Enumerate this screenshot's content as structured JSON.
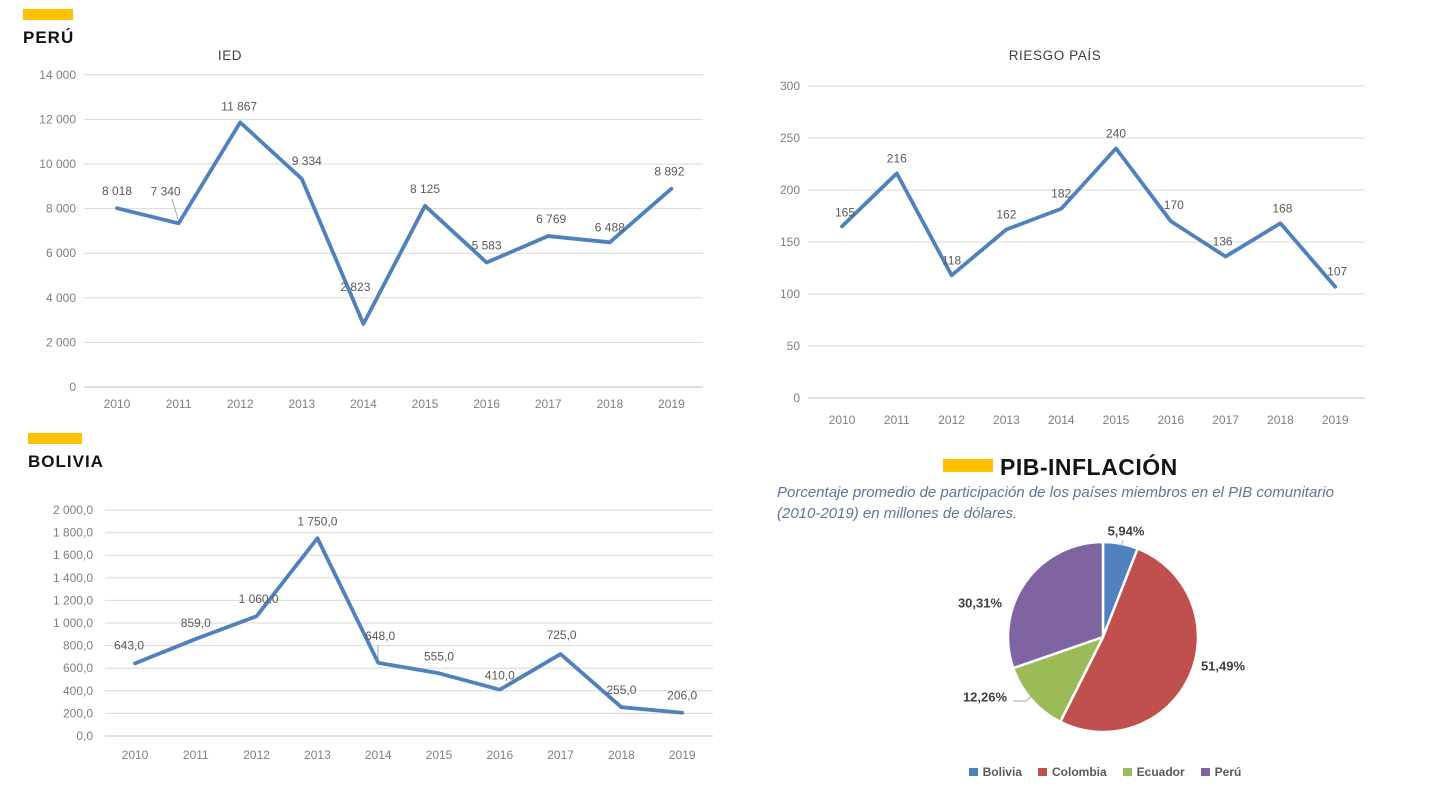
{
  "colors": {
    "accent_yellow": "#FFC000",
    "line_blue": "#4F81BD",
    "grid": "#D9D9D9",
    "axis_line": "#BFBFBF",
    "axis_text": "#7F7F7F",
    "data_label_text": "#595959",
    "subtitle_text": "#5D7599"
  },
  "sections": {
    "peru": {
      "heading": "PERÚ"
    },
    "bolivia": {
      "heading": "BOLIVIA"
    },
    "pib": {
      "heading": "PIB-INFLACIÓN",
      "subtitle": "Porcentaje promedio de participación de los países miembros en el PIB comunitario (2010-2019) en millones de dólares."
    }
  },
  "chart_data": [
    {
      "id": "ied",
      "type": "line",
      "title": "IED",
      "categories": [
        "2010",
        "2011",
        "2012",
        "2013",
        "2014",
        "2015",
        "2016",
        "2017",
        "2018",
        "2019"
      ],
      "values": [
        8018,
        7340,
        11867,
        9334,
        2823,
        8125,
        5583,
        6769,
        6488,
        8892
      ],
      "labels": [
        "8 018",
        "7 340",
        "11 867",
        "9 334",
        "2 823",
        "8 125",
        "5 583",
        "6 769",
        "6 488",
        "8 892"
      ],
      "ylim": [
        0,
        14000
      ],
      "ytick_labels": [
        "0",
        "2 000",
        "4 000",
        "6 000",
        "8 000",
        "10 000",
        "12 000",
        "14 000"
      ],
      "grid": true,
      "line_color": "#4F81BD"
    },
    {
      "id": "riesgo-pais",
      "type": "line",
      "title": "RIESGO PAÍS",
      "categories": [
        "2010",
        "2011",
        "2012",
        "2013",
        "2014",
        "2015",
        "2016",
        "2017",
        "2018",
        "2019"
      ],
      "values": [
        165,
        216,
        118,
        162,
        182,
        240,
        170,
        136,
        168,
        107
      ],
      "labels": [
        "165",
        "216",
        "118",
        "162",
        "182",
        "240",
        "170",
        "136",
        "168",
        "107"
      ],
      "ylim": [
        0,
        300
      ],
      "ytick_labels": [
        "0",
        "50",
        "100",
        "150",
        "200",
        "250",
        "300"
      ],
      "grid": true,
      "line_color": "#4F81BD"
    },
    {
      "id": "bolivia-ied",
      "type": "line",
      "title": "",
      "categories": [
        "2010",
        "2011",
        "2012",
        "2013",
        "2014",
        "2015",
        "2016",
        "2017",
        "2018",
        "2019"
      ],
      "values": [
        643,
        859,
        1060,
        1750,
        648,
        555,
        410,
        725,
        255,
        206
      ],
      "labels": [
        "643,0",
        "859,0",
        "1 060,0",
        "1 750,0",
        "648,0",
        "555,0",
        "410,0",
        "725,0",
        "255,0",
        "206,0"
      ],
      "ylim": [
        0,
        2000
      ],
      "ytick_labels": [
        "0,0",
        "200,0",
        "400,0",
        "600,0",
        "800,0",
        "1 000,0",
        "1 200,0",
        "1 400,0",
        "1 600,0",
        "1 800,0",
        "2 000,0"
      ],
      "grid": true,
      "line_color": "#4F81BD"
    },
    {
      "id": "pib-pie",
      "type": "pie",
      "title": "PIB-INFLACIÓN",
      "legend_position": "bottom",
      "slices": [
        {
          "name": "Bolivia",
          "value": 5.94,
          "label": "5,94%",
          "color": "#4F81BD"
        },
        {
          "name": "Colombia",
          "value": 51.49,
          "label": "51,49%",
          "color": "#C0504D"
        },
        {
          "name": "Ecuador",
          "value": 12.26,
          "label": "12,26%",
          "color": "#9BBB59"
        },
        {
          "name": "Perú",
          "value": 30.31,
          "label": "30,31%",
          "color": "#8064A2"
        }
      ]
    }
  ]
}
